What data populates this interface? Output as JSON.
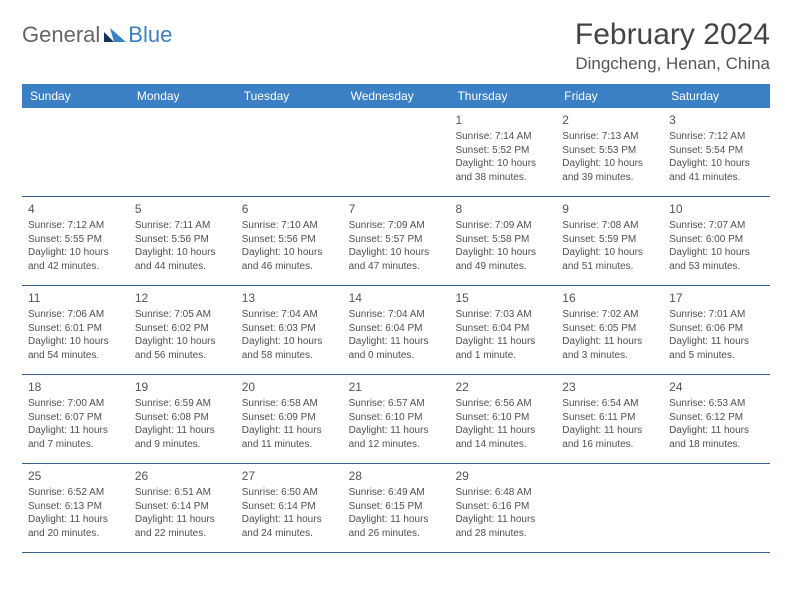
{
  "logo": {
    "text1": "General",
    "text2": "Blue"
  },
  "title": "February 2024",
  "location": "Dingcheng, Henan, China",
  "colors": {
    "header_bg": "#3b7fc4",
    "rule": "#3b5f8a",
    "text": "#444444"
  },
  "days_of_week": [
    "Sunday",
    "Monday",
    "Tuesday",
    "Wednesday",
    "Thursday",
    "Friday",
    "Saturday"
  ],
  "weeks": [
    [
      {},
      {},
      {},
      {},
      {
        "n": "1",
        "sr": "Sunrise: 7:14 AM",
        "ss": "Sunset: 5:52 PM",
        "d1": "Daylight: 10 hours",
        "d2": "and 38 minutes."
      },
      {
        "n": "2",
        "sr": "Sunrise: 7:13 AM",
        "ss": "Sunset: 5:53 PM",
        "d1": "Daylight: 10 hours",
        "d2": "and 39 minutes."
      },
      {
        "n": "3",
        "sr": "Sunrise: 7:12 AM",
        "ss": "Sunset: 5:54 PM",
        "d1": "Daylight: 10 hours",
        "d2": "and 41 minutes."
      }
    ],
    [
      {
        "n": "4",
        "sr": "Sunrise: 7:12 AM",
        "ss": "Sunset: 5:55 PM",
        "d1": "Daylight: 10 hours",
        "d2": "and 42 minutes."
      },
      {
        "n": "5",
        "sr": "Sunrise: 7:11 AM",
        "ss": "Sunset: 5:56 PM",
        "d1": "Daylight: 10 hours",
        "d2": "and 44 minutes."
      },
      {
        "n": "6",
        "sr": "Sunrise: 7:10 AM",
        "ss": "Sunset: 5:56 PM",
        "d1": "Daylight: 10 hours",
        "d2": "and 46 minutes."
      },
      {
        "n": "7",
        "sr": "Sunrise: 7:09 AM",
        "ss": "Sunset: 5:57 PM",
        "d1": "Daylight: 10 hours",
        "d2": "and 47 minutes."
      },
      {
        "n": "8",
        "sr": "Sunrise: 7:09 AM",
        "ss": "Sunset: 5:58 PM",
        "d1": "Daylight: 10 hours",
        "d2": "and 49 minutes."
      },
      {
        "n": "9",
        "sr": "Sunrise: 7:08 AM",
        "ss": "Sunset: 5:59 PM",
        "d1": "Daylight: 10 hours",
        "d2": "and 51 minutes."
      },
      {
        "n": "10",
        "sr": "Sunrise: 7:07 AM",
        "ss": "Sunset: 6:00 PM",
        "d1": "Daylight: 10 hours",
        "d2": "and 53 minutes."
      }
    ],
    [
      {
        "n": "11",
        "sr": "Sunrise: 7:06 AM",
        "ss": "Sunset: 6:01 PM",
        "d1": "Daylight: 10 hours",
        "d2": "and 54 minutes."
      },
      {
        "n": "12",
        "sr": "Sunrise: 7:05 AM",
        "ss": "Sunset: 6:02 PM",
        "d1": "Daylight: 10 hours",
        "d2": "and 56 minutes."
      },
      {
        "n": "13",
        "sr": "Sunrise: 7:04 AM",
        "ss": "Sunset: 6:03 PM",
        "d1": "Daylight: 10 hours",
        "d2": "and 58 minutes."
      },
      {
        "n": "14",
        "sr": "Sunrise: 7:04 AM",
        "ss": "Sunset: 6:04 PM",
        "d1": "Daylight: 11 hours",
        "d2": "and 0 minutes."
      },
      {
        "n": "15",
        "sr": "Sunrise: 7:03 AM",
        "ss": "Sunset: 6:04 PM",
        "d1": "Daylight: 11 hours",
        "d2": "and 1 minute."
      },
      {
        "n": "16",
        "sr": "Sunrise: 7:02 AM",
        "ss": "Sunset: 6:05 PM",
        "d1": "Daylight: 11 hours",
        "d2": "and 3 minutes."
      },
      {
        "n": "17",
        "sr": "Sunrise: 7:01 AM",
        "ss": "Sunset: 6:06 PM",
        "d1": "Daylight: 11 hours",
        "d2": "and 5 minutes."
      }
    ],
    [
      {
        "n": "18",
        "sr": "Sunrise: 7:00 AM",
        "ss": "Sunset: 6:07 PM",
        "d1": "Daylight: 11 hours",
        "d2": "and 7 minutes."
      },
      {
        "n": "19",
        "sr": "Sunrise: 6:59 AM",
        "ss": "Sunset: 6:08 PM",
        "d1": "Daylight: 11 hours",
        "d2": "and 9 minutes."
      },
      {
        "n": "20",
        "sr": "Sunrise: 6:58 AM",
        "ss": "Sunset: 6:09 PM",
        "d1": "Daylight: 11 hours",
        "d2": "and 11 minutes."
      },
      {
        "n": "21",
        "sr": "Sunrise: 6:57 AM",
        "ss": "Sunset: 6:10 PM",
        "d1": "Daylight: 11 hours",
        "d2": "and 12 minutes."
      },
      {
        "n": "22",
        "sr": "Sunrise: 6:56 AM",
        "ss": "Sunset: 6:10 PM",
        "d1": "Daylight: 11 hours",
        "d2": "and 14 minutes."
      },
      {
        "n": "23",
        "sr": "Sunrise: 6:54 AM",
        "ss": "Sunset: 6:11 PM",
        "d1": "Daylight: 11 hours",
        "d2": "and 16 minutes."
      },
      {
        "n": "24",
        "sr": "Sunrise: 6:53 AM",
        "ss": "Sunset: 6:12 PM",
        "d1": "Daylight: 11 hours",
        "d2": "and 18 minutes."
      }
    ],
    [
      {
        "n": "25",
        "sr": "Sunrise: 6:52 AM",
        "ss": "Sunset: 6:13 PM",
        "d1": "Daylight: 11 hours",
        "d2": "and 20 minutes."
      },
      {
        "n": "26",
        "sr": "Sunrise: 6:51 AM",
        "ss": "Sunset: 6:14 PM",
        "d1": "Daylight: 11 hours",
        "d2": "and 22 minutes."
      },
      {
        "n": "27",
        "sr": "Sunrise: 6:50 AM",
        "ss": "Sunset: 6:14 PM",
        "d1": "Daylight: 11 hours",
        "d2": "and 24 minutes."
      },
      {
        "n": "28",
        "sr": "Sunrise: 6:49 AM",
        "ss": "Sunset: 6:15 PM",
        "d1": "Daylight: 11 hours",
        "d2": "and 26 minutes."
      },
      {
        "n": "29",
        "sr": "Sunrise: 6:48 AM",
        "ss": "Sunset: 6:16 PM",
        "d1": "Daylight: 11 hours",
        "d2": "and 28 minutes."
      },
      {},
      {}
    ]
  ]
}
